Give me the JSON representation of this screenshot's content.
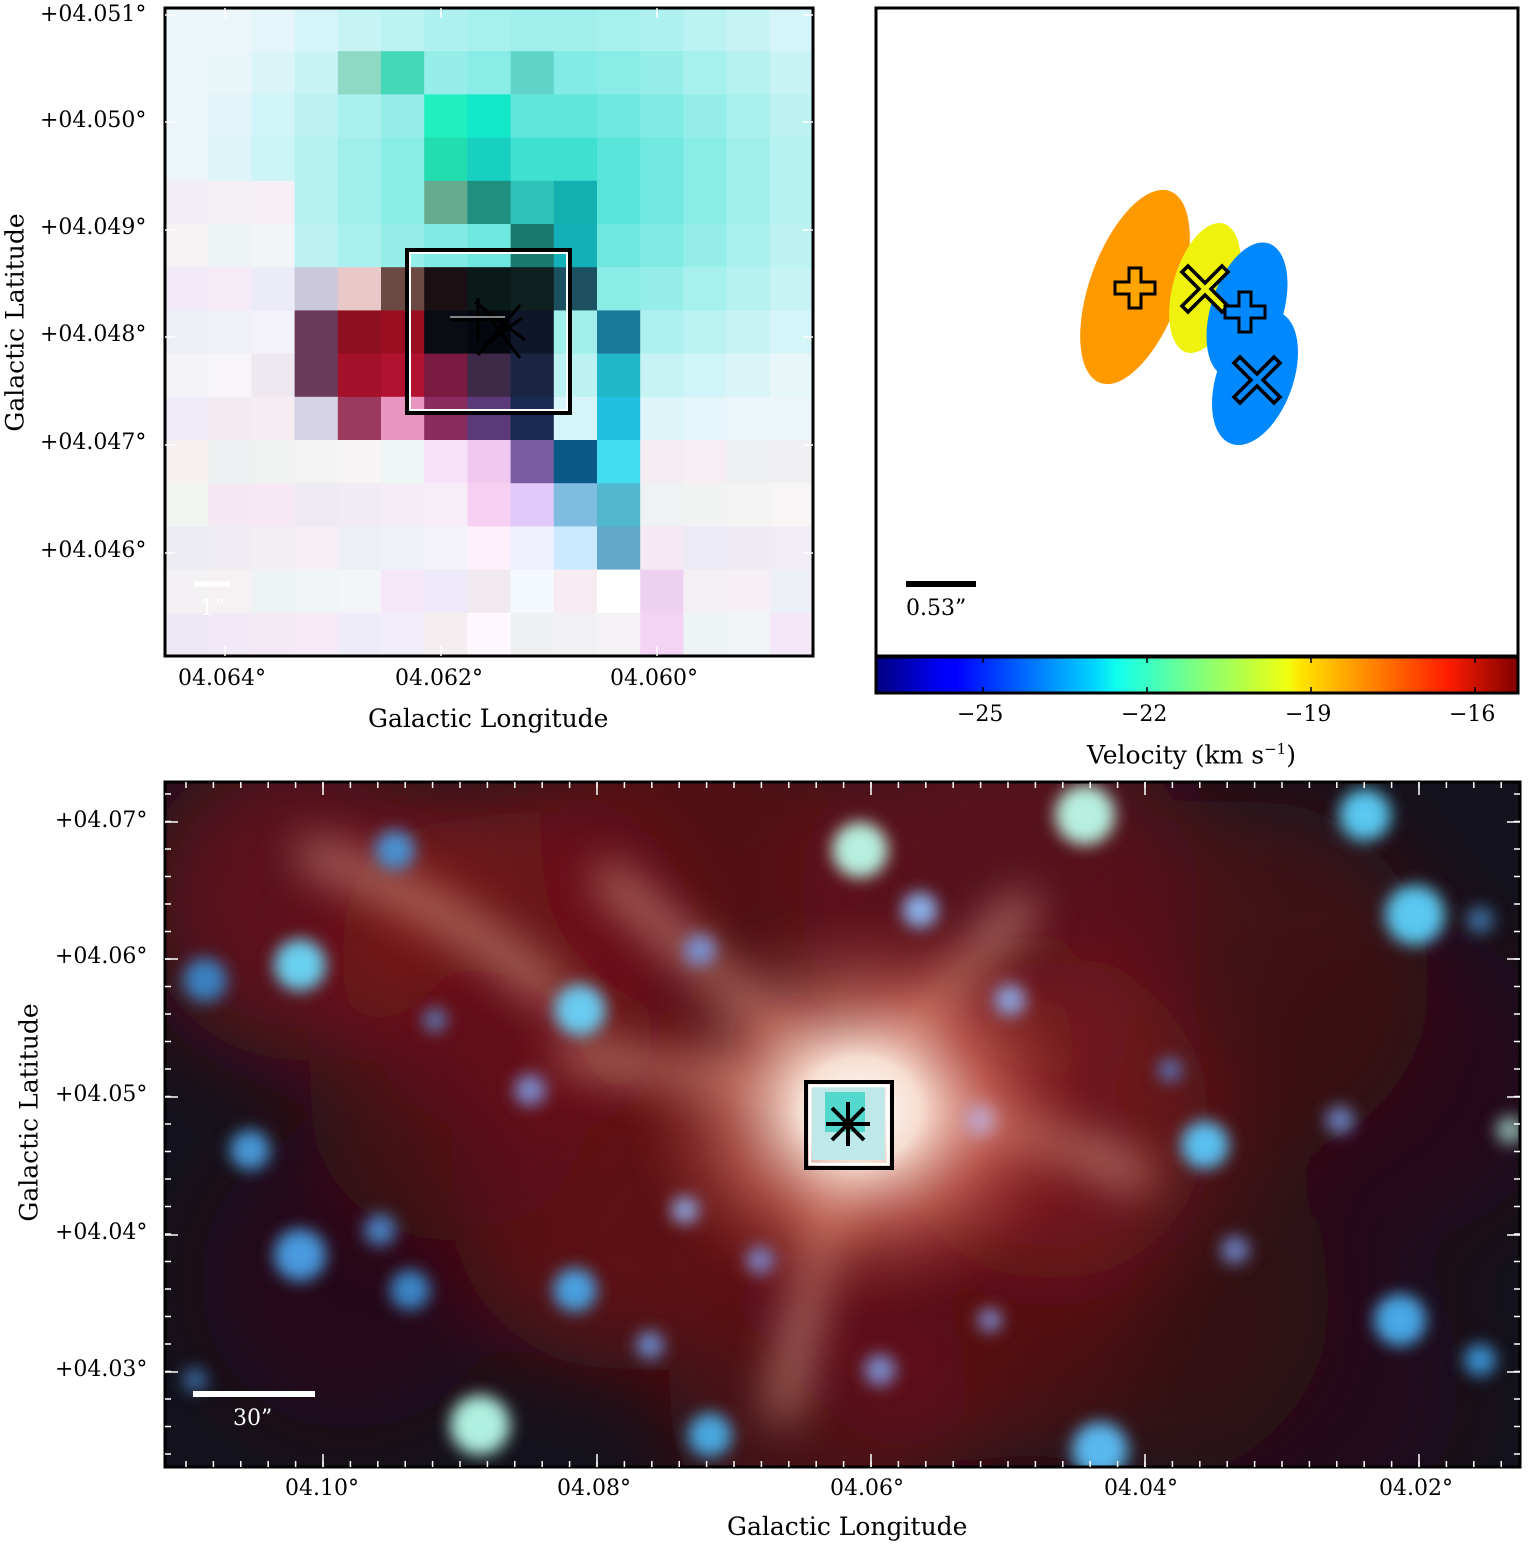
{
  "panel_tl": {
    "y_ticks": [
      "+04.051°",
      "+04.050°",
      "+04.049°",
      "+04.048°",
      "+04.047°",
      "+04.046°"
    ],
    "x_ticks": [
      "04.064°",
      "04.062°",
      "04.060°"
    ],
    "xlabel": "Galactic Longitude",
    "ylabel": "Galactic Latitude",
    "scale_label": "1”"
  },
  "panel_tr": {
    "scale_label": "0.53”",
    "colorbar_ticks": [
      "−25",
      "−22",
      "−19",
      "−16"
    ],
    "colorbar_label": "Velocity (km s",
    "colorbar_label_sup": "−1",
    "colorbar_label_end": ")",
    "colors": {
      "orange": "#ff9900",
      "yellow": "#eef20c",
      "blue": "#0088ff"
    }
  },
  "panel_bottom": {
    "y_ticks": [
      "+04.07°",
      "+04.06°",
      "+04.05°",
      "+04.04°",
      "+04.03°"
    ],
    "x_ticks": [
      "04.10°",
      "04.08°",
      "04.06°",
      "04.04°",
      "04.02°"
    ],
    "xlabel": "Galactic Longitude",
    "ylabel": "Galactic Latitude",
    "scale_label": "30”"
  }
}
